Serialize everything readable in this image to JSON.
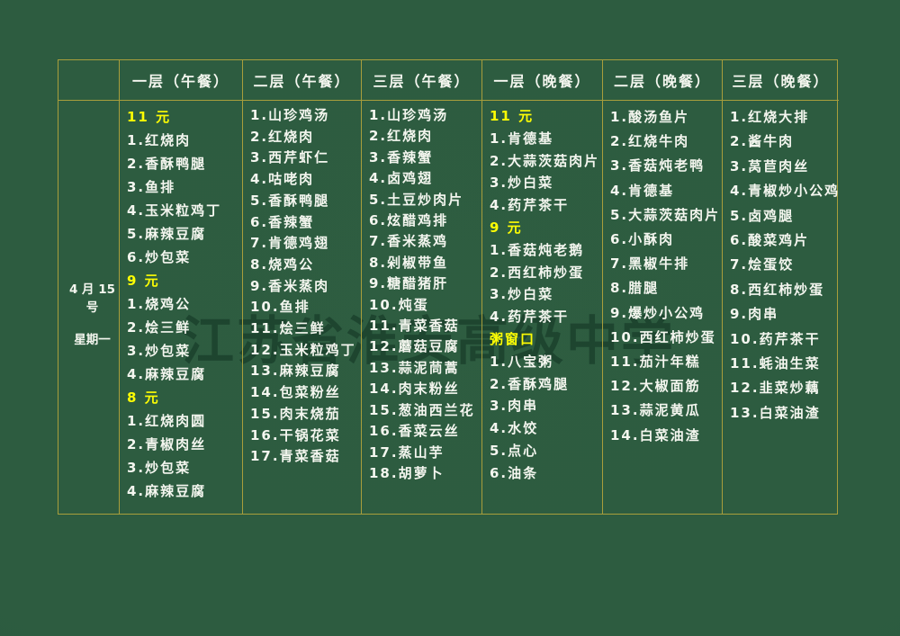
{
  "colors": {
    "background": "#2d5c40",
    "grid_border": "#a89e3c",
    "text_white": "#f4f6ef",
    "text_yellow": "#fdfd04",
    "watermark_green": "#0e2e1e"
  },
  "watermark": {
    "text": "江苏省淮安高级中学"
  },
  "date_cell": {
    "date": "4 月 15 号",
    "weekday": "星期一"
  },
  "columns": [
    {
      "id": "floor1-lunch",
      "header": "一层（午餐）",
      "lines": [
        {
          "text": "11 元",
          "style": "price"
        },
        {
          "text": "1.红烧肉",
          "style": "item"
        },
        {
          "text": "2.香酥鸭腿",
          "style": "item"
        },
        {
          "text": "3.鱼排",
          "style": "item"
        },
        {
          "text": "4.玉米粒鸡丁",
          "style": "item"
        },
        {
          "text": "5.麻辣豆腐",
          "style": "item"
        },
        {
          "text": "6.炒包菜",
          "style": "item"
        },
        {
          "text": "9 元",
          "style": "price"
        },
        {
          "text": "1.烧鸡公",
          "style": "item"
        },
        {
          "text": "2.烩三鲜",
          "style": "item"
        },
        {
          "text": "3.炒包菜",
          "style": "item"
        },
        {
          "text": "4.麻辣豆腐",
          "style": "item"
        },
        {
          "text": "8 元",
          "style": "price"
        },
        {
          "text": "1.红烧肉圆",
          "style": "item"
        },
        {
          "text": "2.青椒肉丝",
          "style": "item"
        },
        {
          "text": "3.炒包菜",
          "style": "item"
        },
        {
          "text": "4.麻辣豆腐",
          "style": "item"
        }
      ]
    },
    {
      "id": "floor2-lunch",
      "header": "二层（午餐）",
      "lines": [
        {
          "text": "1.山珍鸡汤",
          "style": "item"
        },
        {
          "text": "2.红烧肉",
          "style": "item"
        },
        {
          "text": "3.西芹虾仁",
          "style": "item"
        },
        {
          "text": "4.咕咾肉",
          "style": "item"
        },
        {
          "text": "5.香酥鸭腿",
          "style": "item"
        },
        {
          "text": "6.香辣蟹",
          "style": "item"
        },
        {
          "text": "7.肯德鸡翅",
          "style": "item"
        },
        {
          "text": "8.烧鸡公",
          "style": "item"
        },
        {
          "text": "9.香米蒸肉",
          "style": "item"
        },
        {
          "text": "10.鱼排",
          "style": "item"
        },
        {
          "text": "11.烩三鲜",
          "style": "item"
        },
        {
          "text": "12.玉米粒鸡丁",
          "style": "item"
        },
        {
          "text": "13.麻辣豆腐",
          "style": "item"
        },
        {
          "text": "14.包菜粉丝",
          "style": "item"
        },
        {
          "text": "15.肉末烧茄",
          "style": "item"
        },
        {
          "text": "16.干锅花菜",
          "style": "item"
        },
        {
          "text": "17.青菜香菇",
          "style": "item"
        }
      ]
    },
    {
      "id": "floor3-lunch",
      "header": "三层（午餐）",
      "lines": [
        {
          "text": "1.山珍鸡汤",
          "style": "item"
        },
        {
          "text": "2.红烧肉",
          "style": "item"
        },
        {
          "text": "3.香辣蟹",
          "style": "item"
        },
        {
          "text": "4.卤鸡翅",
          "style": "item"
        },
        {
          "text": "5.土豆炒肉片",
          "style": "item"
        },
        {
          "text": "6.炫醋鸡排",
          "style": "item"
        },
        {
          "text": "7.香米蒸鸡",
          "style": "item"
        },
        {
          "text": "8.剁椒带鱼",
          "style": "item"
        },
        {
          "text": "9.糖醋猪肝",
          "style": "item"
        },
        {
          "text": "10.炖蛋",
          "style": "item"
        },
        {
          "text": "11.青菜香菇",
          "style": "item"
        },
        {
          "text": "12.蘑菇豆腐",
          "style": "item"
        },
        {
          "text": "13.蒜泥茼蒿",
          "style": "item"
        },
        {
          "text": "14.肉末粉丝",
          "style": "item"
        },
        {
          "text": "15.葱油西兰花",
          "style": "item"
        },
        {
          "text": "16.香菜云丝",
          "style": "item"
        },
        {
          "text": "17.蒸山芋",
          "style": "item"
        },
        {
          "text": "18.胡萝卜",
          "style": "item"
        }
      ]
    },
    {
      "id": "floor1-dinner",
      "header": "一层（晚餐）",
      "lines": [
        {
          "text": "11 元",
          "style": "price"
        },
        {
          "text": "1.肯德基",
          "style": "item"
        },
        {
          "text": "2.大蒜茨菇肉片",
          "style": "item"
        },
        {
          "text": "3.炒白菜",
          "style": "item"
        },
        {
          "text": "4.药芹茶干",
          "style": "item"
        },
        {
          "text": "9 元",
          "style": "price"
        },
        {
          "text": "1.香菇炖老鹅",
          "style": "item"
        },
        {
          "text": "2.西红柿炒蛋",
          "style": "item"
        },
        {
          "text": "3.炒白菜",
          "style": "item"
        },
        {
          "text": "4.药芹茶干",
          "style": "item"
        },
        {
          "text": "粥窗口",
          "style": "price"
        },
        {
          "text": "1.八宝粥",
          "style": "item"
        },
        {
          "text": "2.香酥鸡腿",
          "style": "item"
        },
        {
          "text": "3.肉串",
          "style": "item"
        },
        {
          "text": "4.水饺",
          "style": "item"
        },
        {
          "text": "5.点心",
          "style": "item"
        },
        {
          "text": "6.油条",
          "style": "item"
        }
      ]
    },
    {
      "id": "floor2-dinner",
      "header": "二层（晚餐）",
      "lines": [
        {
          "text": "1.酸汤鱼片",
          "style": "item"
        },
        {
          "text": "2.红烧牛肉",
          "style": "item"
        },
        {
          "text": "3.香菇炖老鸭",
          "style": "item"
        },
        {
          "text": "4.肯德基",
          "style": "item"
        },
        {
          "text": "5.大蒜茨菇肉片",
          "style": "item"
        },
        {
          "text": "6.小酥肉",
          "style": "item"
        },
        {
          "text": "7.黑椒牛排",
          "style": "item"
        },
        {
          "text": "8.腊腿",
          "style": "item"
        },
        {
          "text": "9.爆炒小公鸡",
          "style": "item"
        },
        {
          "text": "10.西红柿炒蛋",
          "style": "item"
        },
        {
          "text": "11.茄汁年糕",
          "style": "item"
        },
        {
          "text": "12.大椒面筋",
          "style": "item"
        },
        {
          "text": "13.蒜泥黄瓜",
          "style": "item"
        },
        {
          "text": "14.白菜油渣",
          "style": "item"
        }
      ]
    },
    {
      "id": "floor3-dinner",
      "header": "三层（晚餐）",
      "lines": [
        {
          "text": "1.红烧大排",
          "style": "item"
        },
        {
          "text": "2.酱牛肉",
          "style": "item"
        },
        {
          "text": "3.莴苣肉丝",
          "style": "item"
        },
        {
          "text": "4.青椒炒小公鸡",
          "style": "item"
        },
        {
          "text": "5.卤鸡腿",
          "style": "item"
        },
        {
          "text": "6.酸菜鸡片",
          "style": "item"
        },
        {
          "text": "7.烩蛋饺",
          "style": "item"
        },
        {
          "text": "8.西红柿炒蛋",
          "style": "item"
        },
        {
          "text": "9.肉串",
          "style": "item"
        },
        {
          "text": "10.药芹茶干",
          "style": "item"
        },
        {
          "text": "11.蚝油生菜",
          "style": "item"
        },
        {
          "text": "12.韭菜炒藕",
          "style": "item"
        },
        {
          "text": "13.白菜油渣",
          "style": "item"
        }
      ]
    }
  ]
}
